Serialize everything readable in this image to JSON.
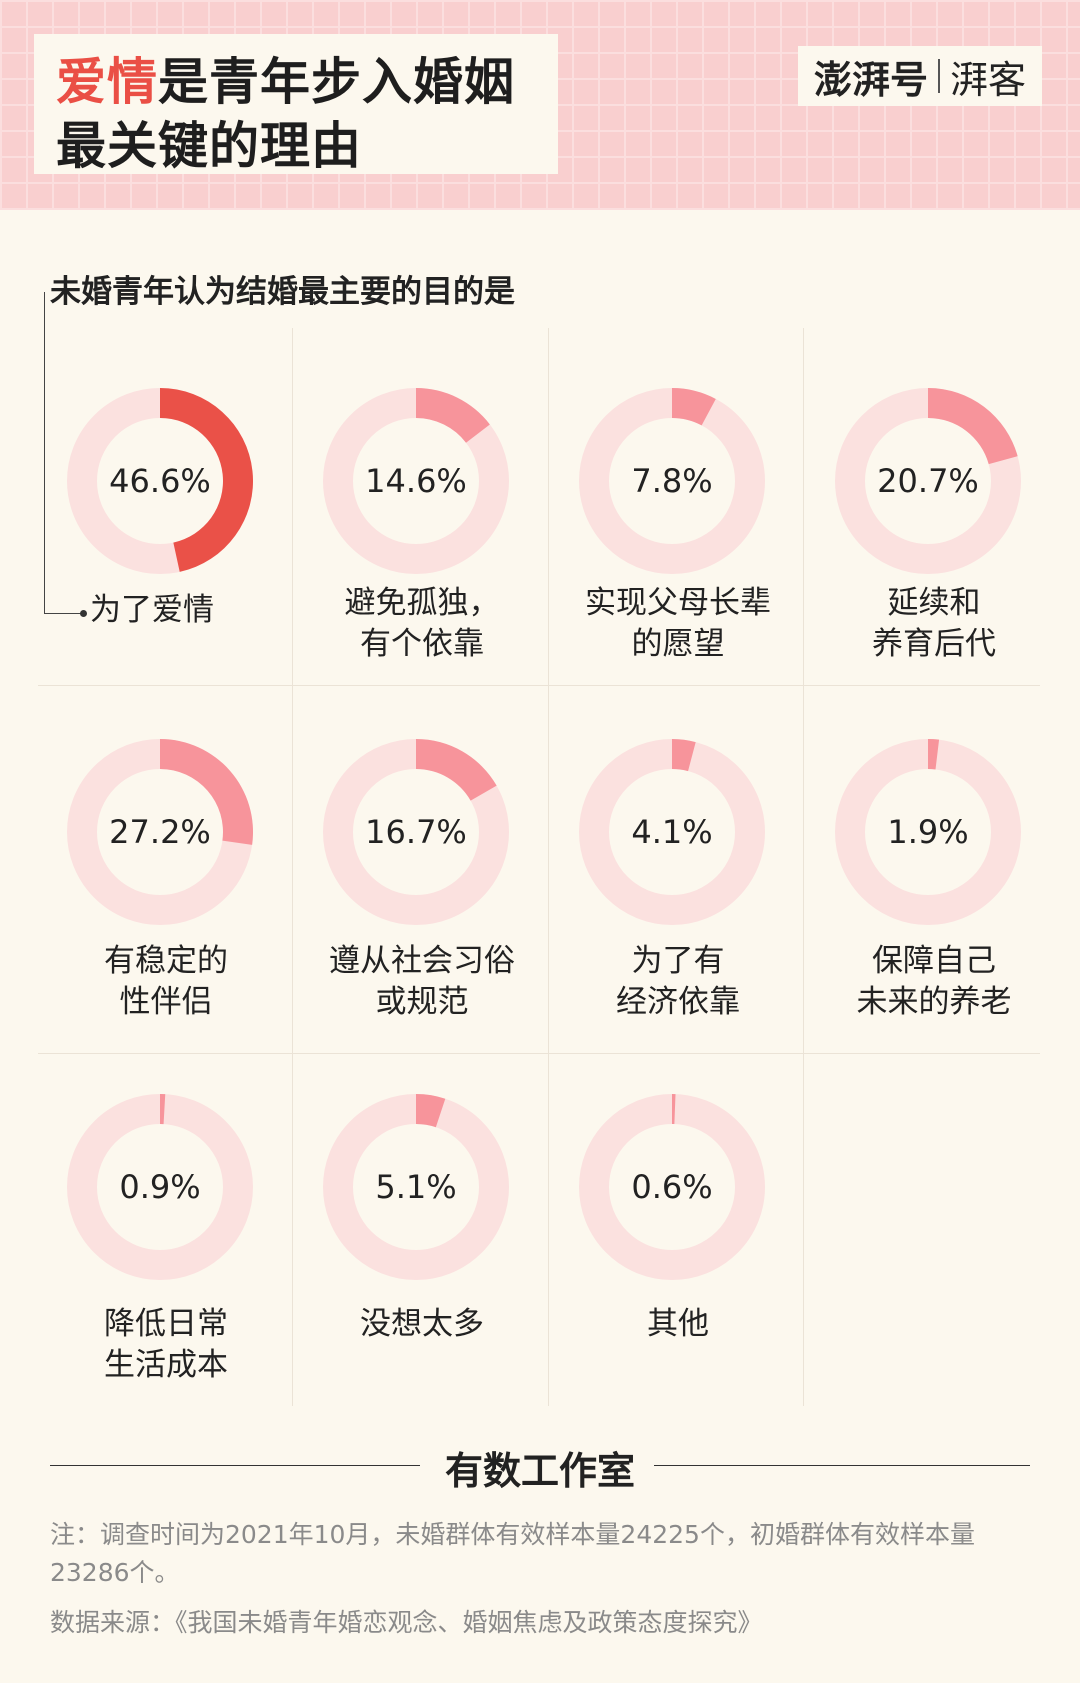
{
  "header": {
    "title_accent": "爱情",
    "title_rest": "是青年步入婚姻",
    "title_line2": "最关键的理由",
    "brand_name": "澎湃号",
    "brand_channel": "湃客"
  },
  "colors": {
    "highlight": "#ea5148",
    "segment": "#f7949b",
    "ring_track": "#fbe1df",
    "background": "#fcf8ee"
  },
  "chart_data": {
    "type": "donut",
    "title": "未婚青年认为结婚最主要的目的是",
    "unit": "%",
    "items": [
      {
        "label": "为了爱情",
        "value": 46.6,
        "display": "46.6%",
        "highlight": true
      },
      {
        "label": "避免孤独，有个依靠",
        "line1": "避免孤独，",
        "line2": "有个依靠",
        "value": 14.6,
        "display": "14.6%"
      },
      {
        "label": "实现父母长辈的愿望",
        "line1": "实现父母长辈",
        "line2": "的愿望",
        "value": 7.8,
        "display": "7.8%"
      },
      {
        "label": "延续和养育后代",
        "line1": "延续和",
        "line2": "养育后代",
        "value": 20.7,
        "display": "20.7%"
      },
      {
        "label": "有稳定的性伴侣",
        "line1": "有稳定的",
        "line2": "性伴侣",
        "value": 27.2,
        "display": "27.2%"
      },
      {
        "label": "遵从社会习俗或规范",
        "line1": "遵从社会习俗",
        "line2": "或规范",
        "value": 16.7,
        "display": "16.7%"
      },
      {
        "label": "为了有经济依靠",
        "line1": "为了有",
        "line2": "经济依靠",
        "value": 4.1,
        "display": "4.1%"
      },
      {
        "label": "保障自己未来的养老",
        "line1": "保障自己",
        "line2": "未来的养老",
        "value": 1.9,
        "display": "1.9%"
      },
      {
        "label": "降低日常生活成本",
        "line1": "降低日常",
        "line2": "生活成本",
        "value": 0.9,
        "display": "0.9%"
      },
      {
        "label": "没想太多",
        "value": 5.1,
        "display": "5.1%"
      },
      {
        "label": "其他",
        "value": 0.6,
        "display": "0.6%"
      }
    ]
  },
  "footer": {
    "studio": "有数工作室",
    "note": "注：调查时间为2021年10月，未婚群体有效样本量24225个，初婚群体有效样本量23286个。",
    "source": "数据来源：《我国未婚青年婚恋观念、婚姻焦虑及政策态度探究》"
  }
}
